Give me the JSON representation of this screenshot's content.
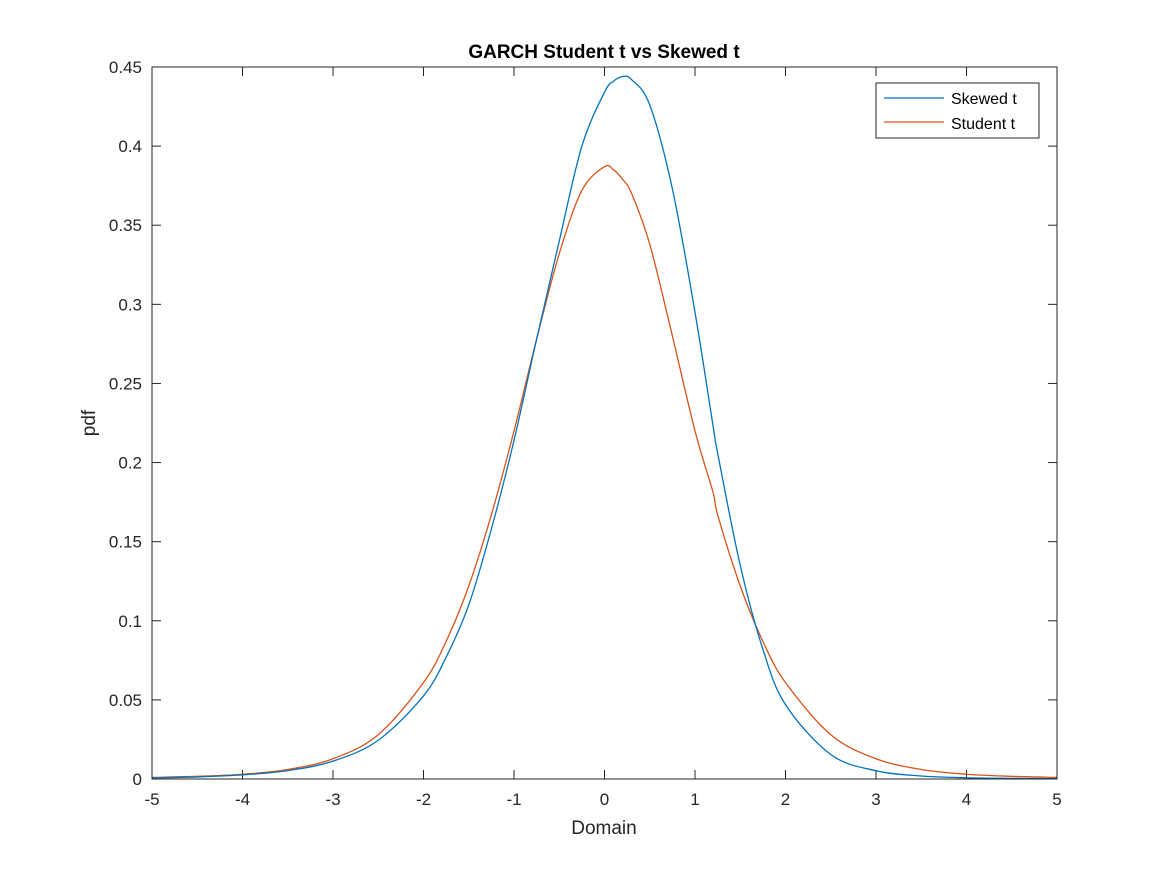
{
  "chart_data": {
    "type": "line",
    "title": "GARCH Student t vs Skewed t",
    "xlabel": "Domain",
    "ylabel": "pdf",
    "xlim": [
      -5,
      5
    ],
    "ylim": [
      0,
      0.45
    ],
    "x_ticks": [
      -5,
      -4,
      -3,
      -2,
      -1,
      0,
      1,
      2,
      3,
      4,
      5
    ],
    "y_ticks": [
      0,
      0.05,
      0.1,
      0.15,
      0.2,
      0.25,
      0.3,
      0.35,
      0.4,
      0.45
    ],
    "x_tick_labels": [
      "-5",
      "-4",
      "-3",
      "-2",
      "-1",
      "0",
      "1",
      "2",
      "3",
      "4",
      "5"
    ],
    "y_tick_labels": [
      "0",
      "0.05",
      "0.1",
      "0.15",
      "0.2",
      "0.25",
      "0.3",
      "0.35",
      "0.4",
      "0.45"
    ],
    "grid": false,
    "legend_position": "top-right",
    "x": [
      -5,
      -4.5,
      -4,
      -3.5,
      -3,
      -2.5,
      -2,
      -1.75,
      -1.5,
      -1.25,
      -1,
      -0.75,
      -0.5,
      -0.25,
      0,
      0.1,
      0.2,
      0.3,
      0.5,
      0.75,
      1,
      1.2,
      1.25,
      1.5,
      1.75,
      2,
      2.5,
      3,
      3.5,
      4,
      4.5,
      5
    ],
    "series": [
      {
        "name": "Skewed t",
        "color": "#0072BD",
        "values": [
          0.0007,
          0.0013,
          0.0026,
          0.0053,
          0.0113,
          0.0245,
          0.0525,
          0.077,
          0.11,
          0.158,
          0.214,
          0.278,
          0.34,
          0.4,
          0.434,
          0.441,
          0.444,
          0.442,
          0.426,
          0.373,
          0.295,
          0.223,
          0.206,
          0.135,
          0.082,
          0.047,
          0.0155,
          0.0052,
          0.0019,
          0.0008,
          0.0004,
          0.0002
        ]
      },
      {
        "name": "Student t",
        "color": "#D95319",
        "values": [
          0.001,
          0.0017,
          0.003,
          0.006,
          0.0128,
          0.028,
          0.061,
          0.087,
          0.122,
          0.167,
          0.22,
          0.278,
          0.332,
          0.372,
          0.387,
          0.385,
          0.379,
          0.37,
          0.338,
          0.28,
          0.22,
          0.181,
          0.167,
          0.122,
          0.087,
          0.061,
          0.028,
          0.0128,
          0.006,
          0.003,
          0.0017,
          0.001
        ]
      }
    ]
  }
}
